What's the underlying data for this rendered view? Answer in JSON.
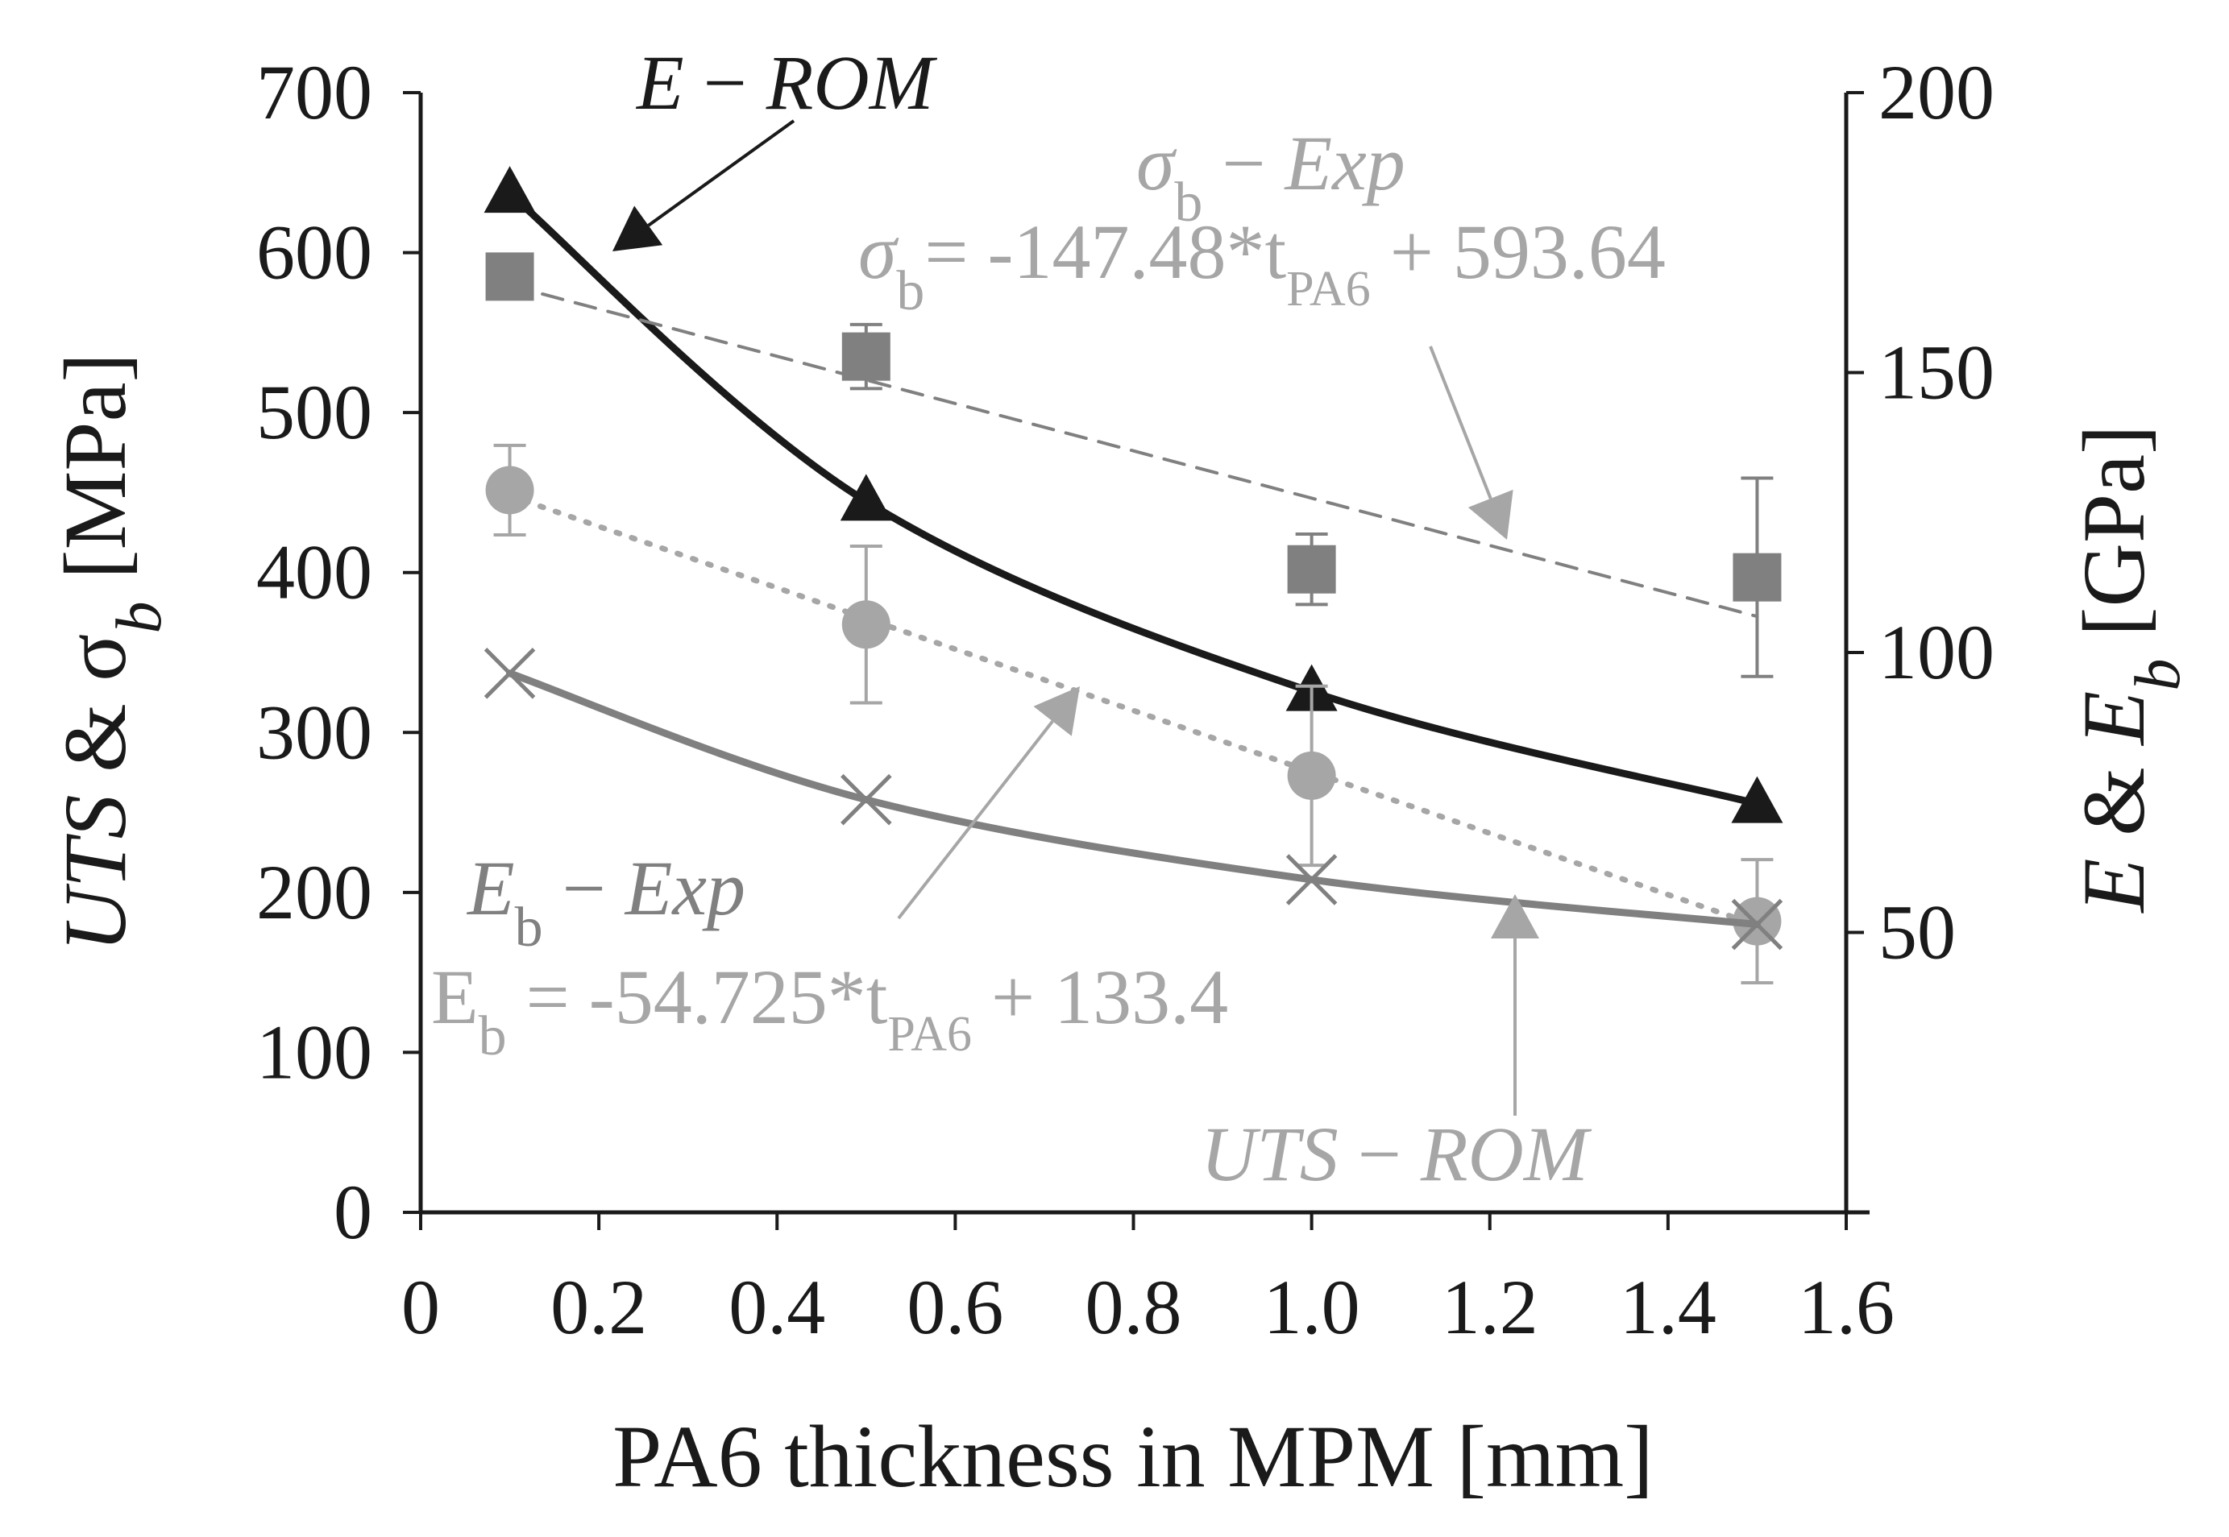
{
  "chart_data": {
    "type": "scatter",
    "title": "",
    "xlabel": "PA6 thickness in MPM [mm]",
    "ylabel_left": {
      "parts": [
        "UTS",
        " & ",
        "σ",
        "b",
        " [MPa]"
      ]
    },
    "ylabel_right": {
      "parts": [
        "E",
        " & ",
        "E",
        "b",
        " [GPa]"
      ]
    },
    "xlim": [
      0,
      1.6
    ],
    "ylim_left": [
      0,
      700
    ],
    "ylim_right": [
      0,
      200
    ],
    "right_axis_range_drawn": [
      0,
      200
    ],
    "x_ticks": [
      "0",
      "0.2",
      "0.4",
      "0.6",
      "0.8",
      "1.0",
      "1.2",
      "1.4",
      "1.6"
    ],
    "y_ticks_left": [
      "0",
      "100",
      "200",
      "300",
      "400",
      "500",
      "600",
      "700"
    ],
    "y_ticks_right": [
      "50",
      "100",
      "150",
      "200"
    ],
    "grid": false,
    "legend": "none",
    "colors": {
      "dark": "#1a1a1a",
      "gray": "#808080",
      "light_gray": "#a6a6a6"
    },
    "series": [
      {
        "name": "E − ROM",
        "axis": "right",
        "marker": "triangle",
        "color": "#1a1a1a",
        "line": "solid-fit",
        "x": [
          0.1,
          0.5,
          1.0,
          1.5
        ],
        "y": [
          182,
          127,
          93,
          73
        ]
      },
      {
        "name": "σb − Exp",
        "axis": "left",
        "marker": "square",
        "color": "#808080",
        "line": "dashed-linear",
        "x": [
          0.1,
          0.5,
          1.0,
          1.5
        ],
        "y": [
          585,
          535,
          402,
          397
        ],
        "err": [
          10,
          20,
          22,
          62
        ]
      },
      {
        "name": "Eb − Exp",
        "axis": "right",
        "marker": "circle",
        "color": "#a6a6a6",
        "line": "dotted-linear",
        "x": [
          0.1,
          0.5,
          1.0,
          1.5
        ],
        "y": [
          129,
          105,
          78,
          52
        ],
        "err": [
          8,
          14,
          16,
          11
        ]
      },
      {
        "name": "UTS − ROM",
        "axis": "left",
        "marker": "x",
        "color": "#808080",
        "line": "solid-fit",
        "x": [
          0.1,
          0.5,
          1.0,
          1.5
        ],
        "y": [
          337,
          258,
          208,
          180
        ]
      }
    ],
    "annotations": {
      "e_rom": {
        "parts": [
          "E",
          " − ",
          "ROM"
        ]
      },
      "sigma_exp": {
        "parts": [
          "σ",
          "b",
          " − ",
          "Exp"
        ]
      },
      "sigma_eq": {
        "parts": [
          "σ",
          "b",
          "= -147.48*t",
          "PA6",
          " + 593.64"
        ]
      },
      "eb_exp": {
        "parts": [
          "E",
          "b",
          " − ",
          "Exp"
        ]
      },
      "eb_eq": {
        "parts": [
          "E",
          "b",
          " = -54.725*t",
          "PA6",
          " + 133.4"
        ]
      },
      "uts_rom": {
        "parts": [
          "UTS",
          " − ",
          "ROM"
        ]
      }
    }
  }
}
